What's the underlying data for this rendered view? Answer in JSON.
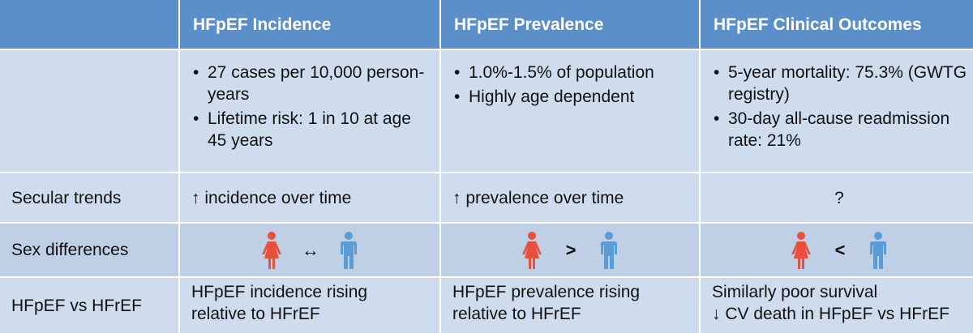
{
  "header": {
    "col1": "",
    "col2": "HFpEF Incidence",
    "col3": "HFpEF Prevalence",
    "col4": "HFpEF Clinical Outcomes"
  },
  "row_stats": {
    "incidence": [
      "27 cases per 10,000 person-years",
      "Lifetime risk: 1 in 10 at age 45 years"
    ],
    "prevalence": [
      "1.0%-1.5% of population",
      "Highly age dependent"
    ],
    "outcomes": [
      "5-year mortality: 75.3% (GWTG registry)",
      "30-day all-cause readmission rate: 21%"
    ]
  },
  "row_secular": {
    "label": "Secular trends",
    "incidence": "↑ incidence over time",
    "prevalence": "↑ prevalence over time",
    "outcomes": "?"
  },
  "row_sex": {
    "label": "Sex differences",
    "incidence_symbol": "↔",
    "prevalence_symbol": ">",
    "outcomes_symbol": "<"
  },
  "row_vs": {
    "label": "HFpEF vs HFrEF",
    "incidence": [
      "HFpEF incidence rising",
      "relative to HFrEF"
    ],
    "prevalence": [
      "HFpEF prevalence rising",
      "relative to HFrEF"
    ],
    "outcomes": [
      "Similarly poor survival",
      "↓ CV death in HFpEF vs HFrEF"
    ]
  },
  "icons": {
    "female": "female-figure-icon",
    "male": "male-figure-icon"
  },
  "colors": {
    "header_bg": "#5b8fc9",
    "row_light": "#cfdcee",
    "row_mid": "#bfcfe6",
    "female": "#e8503c",
    "male": "#5b9bd6"
  }
}
